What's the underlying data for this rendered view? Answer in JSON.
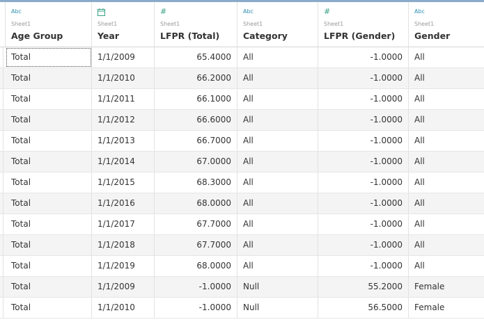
{
  "columns": [
    {
      "type_label": "Abc",
      "type_icon": "string-type-icon",
      "source": "Sheet1",
      "name": "Age Group"
    },
    {
      "type_label": "",
      "type_icon": "calendar-date-icon",
      "source": "Sheet1",
      "name": "Year"
    },
    {
      "type_label": "#",
      "type_icon": "number-type-icon",
      "source": "Sheet1",
      "name": "LFPR (Total)"
    },
    {
      "type_label": "Abc",
      "type_icon": "string-type-icon",
      "source": "Sheet1",
      "name": "Category"
    },
    {
      "type_label": "#",
      "type_icon": "number-type-icon",
      "source": "Sheet1",
      "name": "LFPR (Gender)"
    },
    {
      "type_label": "Abc",
      "type_icon": "string-type-icon",
      "source": "Sheet1",
      "name": "Gender"
    }
  ],
  "rows": [
    [
      "Total",
      "1/1/2009",
      "65.4000",
      "All",
      "-1.0000",
      "All"
    ],
    [
      "Total",
      "1/1/2010",
      "66.2000",
      "All",
      "-1.0000",
      "All"
    ],
    [
      "Total",
      "1/1/2011",
      "66.1000",
      "All",
      "-1.0000",
      "All"
    ],
    [
      "Total",
      "1/1/2012",
      "66.6000",
      "All",
      "-1.0000",
      "All"
    ],
    [
      "Total",
      "1/1/2013",
      "66.7000",
      "All",
      "-1.0000",
      "All"
    ],
    [
      "Total",
      "1/1/2014",
      "67.0000",
      "All",
      "-1.0000",
      "All"
    ],
    [
      "Total",
      "1/1/2015",
      "68.3000",
      "All",
      "-1.0000",
      "All"
    ],
    [
      "Total",
      "1/1/2016",
      "68.0000",
      "All",
      "-1.0000",
      "All"
    ],
    [
      "Total",
      "1/1/2017",
      "67.7000",
      "All",
      "-1.0000",
      "All"
    ],
    [
      "Total",
      "1/1/2018",
      "67.7000",
      "All",
      "-1.0000",
      "All"
    ],
    [
      "Total",
      "1/1/2019",
      "68.0000",
      "All",
      "-1.0000",
      "All"
    ],
    [
      "Total",
      "1/1/2009",
      "-1.0000",
      "Null",
      "55.2000",
      "Female"
    ],
    [
      "Total",
      "1/1/2010",
      "-1.0000",
      "Null",
      "56.5000",
      "Female"
    ]
  ],
  "colors": {
    "string_icon": "#2a8fb0",
    "number_icon": "#37a183",
    "top_accent": "#8aaac9"
  }
}
